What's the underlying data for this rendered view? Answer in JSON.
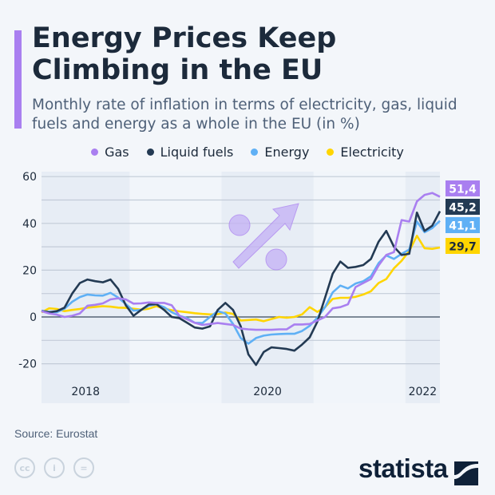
{
  "title": "Energy Prices Keep Climbing in the EU",
  "subtitle": "Monthly rate of inflation in terms of electricity, gas, liquid fuels and energy as a whole in the EU (in %)",
  "source": "Source: Eurostat",
  "brand": "statista",
  "footer_icons": [
    "cc-icon",
    "by-icon",
    "nd-icon"
  ],
  "chart_data": {
    "type": "line",
    "title": "",
    "xlabel": "",
    "ylabel": "",
    "ylim": [
      -25,
      60
    ],
    "yticks": [
      -20,
      0,
      20,
      40,
      60
    ],
    "grid": true,
    "legend": "top",
    "year_labels": [
      "2018",
      "2020",
      "2022"
    ],
    "x": [
      "2018-01",
      "2018-02",
      "2018-03",
      "2018-04",
      "2018-05",
      "2018-06",
      "2018-07",
      "2018-08",
      "2018-09",
      "2018-10",
      "2018-11",
      "2018-12",
      "2019-01",
      "2019-02",
      "2019-03",
      "2019-04",
      "2019-05",
      "2019-06",
      "2019-07",
      "2019-08",
      "2019-09",
      "2019-10",
      "2019-11",
      "2019-12",
      "2020-01",
      "2020-02",
      "2020-03",
      "2020-04",
      "2020-05",
      "2020-06",
      "2020-07",
      "2020-08",
      "2020-09",
      "2020-10",
      "2020-11",
      "2020-12",
      "2021-01",
      "2021-02",
      "2021-03",
      "2021-04",
      "2021-05",
      "2021-06",
      "2021-07",
      "2021-08",
      "2021-09",
      "2021-10",
      "2021-11",
      "2021-12",
      "2022-01",
      "2022-02",
      "2022-03",
      "2022-04",
      "2022-05"
    ],
    "series": [
      {
        "name": "Gas",
        "color": "#a97ff0",
        "end_label": "51,4",
        "values": [
          2.5,
          1.5,
          1,
          0,
          0.5,
          1.5,
          4.8,
          5.2,
          5.8,
          7.5,
          8,
          7.5,
          5.7,
          5.8,
          6.2,
          6,
          6,
          5,
          0.5,
          -1,
          -2.5,
          -3.4,
          -3,
          -2.6,
          -3,
          -3.4,
          -5,
          -5.3,
          -5.5,
          -5.5,
          -5.5,
          -5.3,
          -5.3,
          -3.2,
          -3.2,
          -3,
          -1.5,
          0,
          3.7,
          4.2,
          5.4,
          12.8,
          14.5,
          16.2,
          22,
          26.5,
          27.7,
          41.4,
          40.8,
          49.4,
          52.2,
          53,
          51.4
        ]
      },
      {
        "name": "Liquid fuels",
        "color": "#233a53",
        "end_label": "45,2",
        "values": [
          2.5,
          2,
          2.5,
          4,
          10,
          14.5,
          16,
          15.3,
          14.8,
          16,
          12,
          5,
          0.5,
          3,
          5.3,
          5.5,
          3,
          0,
          -0.5,
          -2.5,
          -4.5,
          -5,
          -4,
          3,
          6,
          3,
          -4,
          -16,
          -20.5,
          -15,
          -13,
          -13.3,
          -13.7,
          -14.4,
          -11.8,
          -8.7,
          -2,
          8.2,
          18.5,
          23.7,
          21,
          21.4,
          22.2,
          24.8,
          32.2,
          36.8,
          30,
          26.5,
          27,
          44.6,
          36.8,
          39,
          45.2
        ]
      },
      {
        "name": "Energy",
        "color": "#5fb0f5",
        "end_label": "41,1",
        "values": [
          2.7,
          2.2,
          2,
          3.5,
          6.5,
          8.5,
          9.6,
          9.2,
          9.1,
          10.3,
          8.3,
          5.5,
          2.7,
          3,
          4.8,
          5.4,
          4.2,
          2,
          0.5,
          -0.5,
          -2.5,
          -2.6,
          0,
          2.5,
          1.5,
          -3,
          -9,
          -11.4,
          -9,
          -8,
          -7.5,
          -7.3,
          -7.2,
          -7.2,
          -6,
          -3.8,
          -0.3,
          4.2,
          10.5,
          13.4,
          12.2,
          14.3,
          15.3,
          17.4,
          23,
          26.3,
          24.8,
          27,
          28.8,
          40.8,
          36.2,
          38,
          41.1
        ]
      },
      {
        "name": "Electricity",
        "color": "#ffd500",
        "end_label": "29,7",
        "values": [
          2,
          3.7,
          3.4,
          2.5,
          3,
          3.4,
          4,
          4.3,
          4.6,
          4.4,
          4,
          3.9,
          3.5,
          3.1,
          3.5,
          4.6,
          3.5,
          2.9,
          2.4,
          2,
          1.6,
          1.3,
          1.1,
          1.2,
          1.9,
          1.3,
          -1.5,
          -1.3,
          -1.1,
          -1.8,
          -0.9,
          0,
          -0.3,
          0,
          1.1,
          4.2,
          2.2,
          4.2,
          7.7,
          8.2,
          8.2,
          8.6,
          9.6,
          11,
          14.5,
          16.2,
          20.8,
          24,
          28.2,
          34.7,
          29.4,
          29.1,
          29.7
        ]
      }
    ]
  }
}
